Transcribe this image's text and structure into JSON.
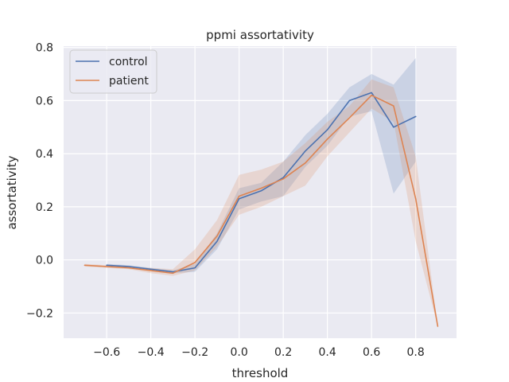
{
  "chart_data": {
    "type": "line",
    "title": "ppmi assortativity",
    "xlabel": "threshold",
    "ylabel": "assortativity",
    "xlim": [
      -0.795,
      0.985
    ],
    "ylim": [
      -0.295,
      0.805
    ],
    "xticks": [
      -0.6,
      -0.4,
      -0.2,
      0.0,
      0.2,
      0.4,
      0.6,
      0.8
    ],
    "xtick_labels": [
      "−0.6",
      "−0.4",
      "−0.2",
      "0.0",
      "0.2",
      "0.4",
      "0.6",
      "0.8"
    ],
    "yticks": [
      -0.2,
      0.0,
      0.2,
      0.4,
      0.6,
      0.8
    ],
    "ytick_labels": [
      "−0.2",
      "0.0",
      "0.2",
      "0.4",
      "0.6",
      "0.8"
    ],
    "grid": true,
    "legend_position": "top-left",
    "background": "#eaeaf2",
    "series": [
      {
        "name": "control",
        "color": "#4c72b0",
        "x": [
          -0.6,
          -0.5,
          -0.4,
          -0.3,
          -0.2,
          -0.1,
          0.0,
          0.1,
          0.2,
          0.3,
          0.4,
          0.5,
          0.6,
          0.7,
          0.8
        ],
        "y": [
          -0.02,
          -0.025,
          -0.035,
          -0.045,
          -0.03,
          0.07,
          0.23,
          0.26,
          0.31,
          0.41,
          0.49,
          0.6,
          0.63,
          0.5,
          0.54
        ],
        "lower": [
          -0.025,
          -0.03,
          -0.04,
          -0.05,
          -0.045,
          0.04,
          0.19,
          0.22,
          0.24,
          0.35,
          0.43,
          0.54,
          0.56,
          0.25,
          0.37
        ],
        "upper": [
          -0.015,
          -0.02,
          -0.03,
          -0.04,
          -0.015,
          0.1,
          0.27,
          0.29,
          0.37,
          0.47,
          0.55,
          0.65,
          0.7,
          0.66,
          0.76
        ]
      },
      {
        "name": "patient",
        "color": "#dd8452",
        "x": [
          -0.7,
          -0.6,
          -0.5,
          -0.4,
          -0.3,
          -0.2,
          -0.1,
          0.0,
          0.1,
          0.2,
          0.3,
          0.4,
          0.5,
          0.6,
          0.7,
          0.8,
          0.9
        ],
        "y": [
          -0.02,
          -0.025,
          -0.03,
          -0.04,
          -0.05,
          -0.01,
          0.09,
          0.24,
          0.27,
          0.305,
          0.365,
          0.455,
          0.535,
          0.62,
          0.58,
          0.23,
          -0.25
        ],
        "lower": [
          -0.025,
          -0.03,
          -0.035,
          -0.05,
          -0.06,
          -0.04,
          0.05,
          0.17,
          0.2,
          0.24,
          0.28,
          0.39,
          0.48,
          0.57,
          0.52,
          0.07,
          -0.25
        ],
        "upper": [
          -0.015,
          -0.02,
          -0.025,
          -0.03,
          -0.035,
          0.04,
          0.15,
          0.32,
          0.34,
          0.37,
          0.44,
          0.52,
          0.58,
          0.68,
          0.65,
          0.39,
          -0.25
        ]
      }
    ]
  }
}
